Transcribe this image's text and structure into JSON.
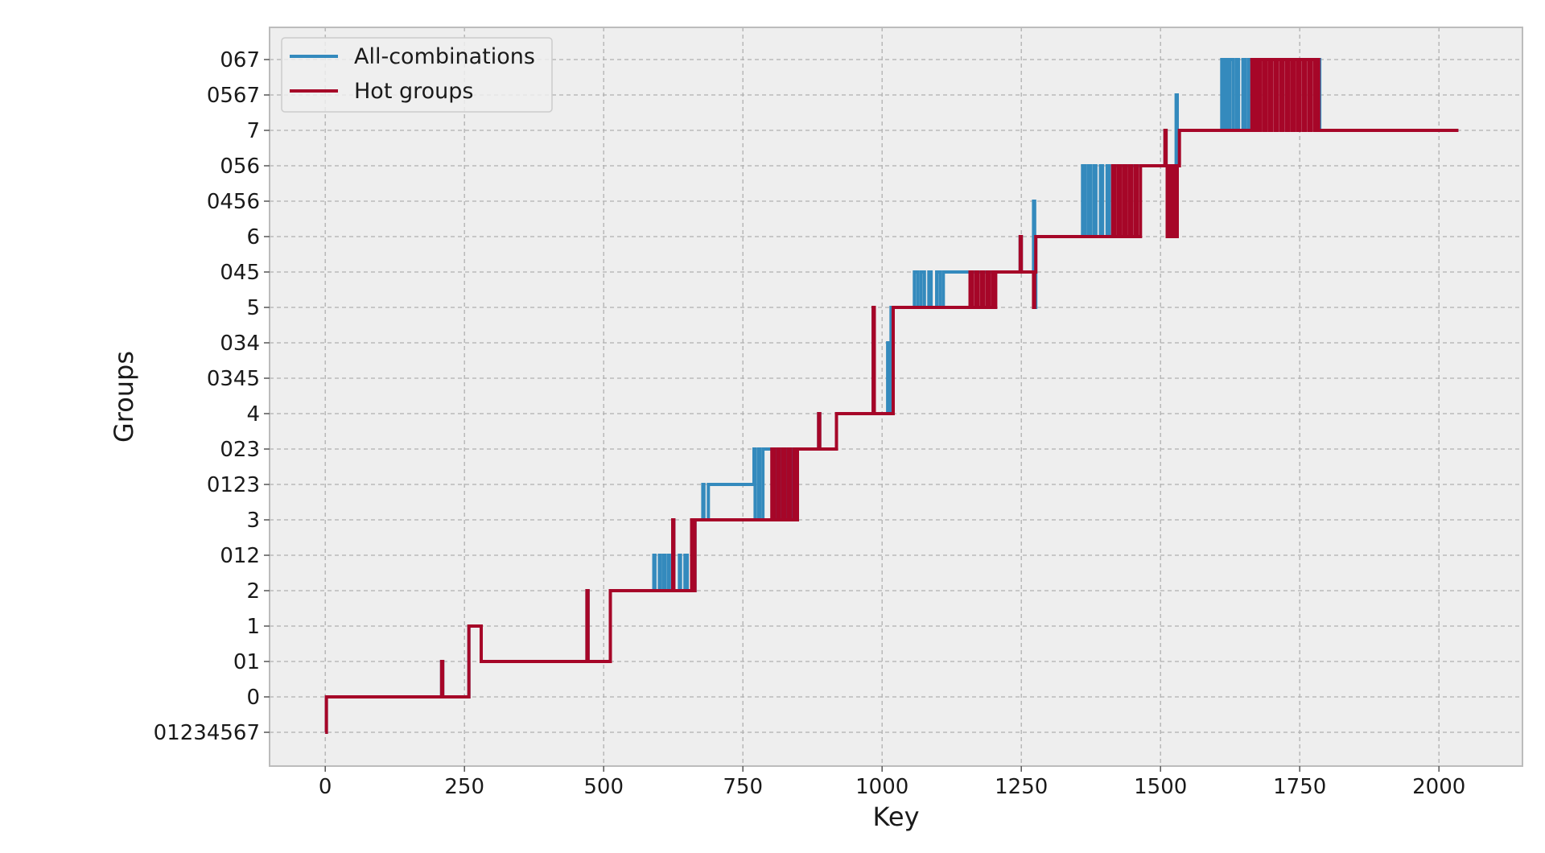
{
  "chart_data": {
    "type": "line",
    "title": "",
    "xlabel": "Key",
    "ylabel": "Groups",
    "xlim": [
      -100,
      2150
    ],
    "x_ticks": [
      0,
      250,
      500,
      750,
      1000,
      1250,
      1500,
      1750,
      2000
    ],
    "y_categories": [
      "01234567",
      "0",
      "01",
      "1",
      "2",
      "012",
      "3",
      "0123",
      "023",
      "4",
      "0345",
      "034",
      "5",
      "045",
      "6",
      "0456",
      "056",
      "7",
      "0567",
      "067"
    ],
    "grid": true,
    "legend_position": "top-left",
    "series": [
      {
        "name": "All-combinations",
        "color": "#348ABD",
        "points": [
          [
            0,
            "01234567"
          ],
          [
            2,
            "0"
          ],
          [
            207,
            "0"
          ],
          [
            209,
            "01"
          ],
          [
            211,
            "0"
          ],
          [
            256,
            "0"
          ],
          [
            258,
            "1"
          ],
          [
            278,
            "1"
          ],
          [
            280,
            "01"
          ],
          [
            468,
            "01"
          ],
          [
            470,
            "2"
          ],
          [
            472,
            "01"
          ],
          [
            510,
            "01"
          ],
          [
            512,
            "2"
          ],
          [
            588,
            "2"
          ],
          [
            590,
            "012"
          ],
          [
            592,
            "2"
          ],
          [
            598,
            "2"
          ],
          [
            600,
            "012"
          ],
          [
            602,
            "2"
          ],
          [
            606,
            "2"
          ],
          [
            608,
            "012"
          ],
          [
            610,
            "2"
          ],
          [
            614,
            "2"
          ],
          [
            616,
            "012"
          ],
          [
            618,
            "2"
          ],
          [
            622,
            "2"
          ],
          [
            624,
            "3"
          ],
          [
            626,
            "2"
          ],
          [
            634,
            "2"
          ],
          [
            636,
            "012"
          ],
          [
            638,
            "2"
          ],
          [
            644,
            "2"
          ],
          [
            646,
            "012"
          ],
          [
            650,
            "2"
          ],
          [
            656,
            "2"
          ],
          [
            658,
            "012"
          ],
          [
            662,
            "2"
          ],
          [
            664,
            "3"
          ],
          [
            676,
            "3"
          ],
          [
            678,
            "0123"
          ],
          [
            680,
            "3"
          ],
          [
            686,
            "3"
          ],
          [
            688,
            "0123"
          ],
          [
            768,
            "0123"
          ],
          [
            770,
            "023"
          ],
          [
            772,
            "3"
          ],
          [
            776,
            "3"
          ],
          [
            778,
            "023"
          ],
          [
            780,
            "3"
          ],
          [
            784,
            "3"
          ],
          [
            786,
            "023"
          ],
          [
            806,
            "023"
          ],
          [
            808,
            "3"
          ],
          [
            812,
            "3"
          ],
          [
            814,
            "023"
          ],
          [
            818,
            "3"
          ],
          [
            822,
            "3"
          ],
          [
            824,
            "023"
          ],
          [
            828,
            "3"
          ],
          [
            832,
            "3"
          ],
          [
            834,
            "023"
          ],
          [
            838,
            "3"
          ],
          [
            842,
            "3"
          ],
          [
            844,
            "023"
          ],
          [
            884,
            "023"
          ],
          [
            886,
            "4"
          ],
          [
            888,
            "023"
          ],
          [
            916,
            "023"
          ],
          [
            918,
            "4"
          ],
          [
            982,
            "4"
          ],
          [
            984,
            "5"
          ],
          [
            986,
            "4"
          ],
          [
            1008,
            "4"
          ],
          [
            1010,
            "034"
          ],
          [
            1014,
            "4"
          ],
          [
            1016,
            "5"
          ],
          [
            1056,
            "5"
          ],
          [
            1058,
            "045"
          ],
          [
            1064,
            "5"
          ],
          [
            1068,
            "5"
          ],
          [
            1070,
            "045"
          ],
          [
            1076,
            "5"
          ],
          [
            1082,
            "5"
          ],
          [
            1084,
            "045"
          ],
          [
            1088,
            "5"
          ],
          [
            1096,
            "5"
          ],
          [
            1098,
            "045"
          ],
          [
            1104,
            "5"
          ],
          [
            1108,
            "5"
          ],
          [
            1110,
            "045"
          ],
          [
            1246,
            "045"
          ],
          [
            1248,
            "6"
          ],
          [
            1250,
            "045"
          ],
          [
            1270,
            "045"
          ],
          [
            1272,
            "0456"
          ],
          [
            1274,
            "5"
          ],
          [
            1276,
            "6"
          ],
          [
            1358,
            "6"
          ],
          [
            1360,
            "056"
          ],
          [
            1364,
            "6"
          ],
          [
            1368,
            "6"
          ],
          [
            1370,
            "056"
          ],
          [
            1374,
            "6"
          ],
          [
            1378,
            "6"
          ],
          [
            1380,
            "056"
          ],
          [
            1384,
            "6"
          ],
          [
            1390,
            "6"
          ],
          [
            1392,
            "056"
          ],
          [
            1396,
            "6"
          ],
          [
            1402,
            "6"
          ],
          [
            1404,
            "056"
          ],
          [
            1408,
            "6"
          ],
          [
            1414,
            "6"
          ],
          [
            1416,
            "056"
          ],
          [
            1506,
            "056"
          ],
          [
            1508,
            "7"
          ],
          [
            1510,
            "056"
          ],
          [
            1526,
            "056"
          ],
          [
            1528,
            "0567"
          ],
          [
            1530,
            "056"
          ],
          [
            1532,
            "7"
          ],
          [
            1608,
            "7"
          ],
          [
            1610,
            "067"
          ],
          [
            1614,
            "7"
          ],
          [
            1616,
            "067"
          ],
          [
            1620,
            "7"
          ],
          [
            1624,
            "067"
          ],
          [
            1630,
            "7"
          ],
          [
            1636,
            "067"
          ],
          [
            1640,
            "7"
          ],
          [
            1648,
            "067"
          ],
          [
            1652,
            "7"
          ],
          [
            1658,
            "067"
          ],
          [
            1664,
            "7"
          ],
          [
            1668,
            "067"
          ],
          [
            1784,
            "067"
          ],
          [
            1786,
            "7"
          ],
          [
            2035,
            "7"
          ]
        ]
      },
      {
        "name": "Hot groups",
        "color": "#A60628",
        "points": [
          [
            0,
            "01234567"
          ],
          [
            2,
            "0"
          ],
          [
            207,
            "0"
          ],
          [
            209,
            "01"
          ],
          [
            211,
            "0"
          ],
          [
            256,
            "0"
          ],
          [
            258,
            "1"
          ],
          [
            278,
            "1"
          ],
          [
            280,
            "01"
          ],
          [
            468,
            "01"
          ],
          [
            470,
            "2"
          ],
          [
            472,
            "01"
          ],
          [
            510,
            "01"
          ],
          [
            512,
            "2"
          ],
          [
            622,
            "2"
          ],
          [
            624,
            "3"
          ],
          [
            626,
            "2"
          ],
          [
            656,
            "2"
          ],
          [
            658,
            "3"
          ],
          [
            660,
            "2"
          ],
          [
            664,
            "3"
          ],
          [
            800,
            "3"
          ],
          [
            802,
            "023"
          ],
          [
            806,
            "3"
          ],
          [
            810,
            "3"
          ],
          [
            812,
            "023"
          ],
          [
            816,
            "3"
          ],
          [
            820,
            "3"
          ],
          [
            822,
            "023"
          ],
          [
            826,
            "3"
          ],
          [
            830,
            "3"
          ],
          [
            832,
            "023"
          ],
          [
            836,
            "3"
          ],
          [
            840,
            "3"
          ],
          [
            842,
            "023"
          ],
          [
            846,
            "3"
          ],
          [
            848,
            "023"
          ],
          [
            884,
            "023"
          ],
          [
            886,
            "4"
          ],
          [
            888,
            "023"
          ],
          [
            916,
            "023"
          ],
          [
            918,
            "4"
          ],
          [
            982,
            "4"
          ],
          [
            984,
            "5"
          ],
          [
            986,
            "4"
          ],
          [
            1018,
            "4"
          ],
          [
            1020,
            "5"
          ],
          [
            1156,
            "5"
          ],
          [
            1158,
            "045"
          ],
          [
            1162,
            "5"
          ],
          [
            1166,
            "5"
          ],
          [
            1168,
            "045"
          ],
          [
            1172,
            "5"
          ],
          [
            1176,
            "5"
          ],
          [
            1178,
            "045"
          ],
          [
            1182,
            "5"
          ],
          [
            1186,
            "5"
          ],
          [
            1188,
            "045"
          ],
          [
            1192,
            "5"
          ],
          [
            1196,
            "5"
          ],
          [
            1198,
            "045"
          ],
          [
            1202,
            "5"
          ],
          [
            1204,
            "045"
          ],
          [
            1246,
            "045"
          ],
          [
            1248,
            "6"
          ],
          [
            1250,
            "045"
          ],
          [
            1270,
            "045"
          ],
          [
            1272,
            "5"
          ],
          [
            1274,
            "045"
          ],
          [
            1276,
            "6"
          ],
          [
            1412,
            "6"
          ],
          [
            1414,
            "056"
          ],
          [
            1418,
            "6"
          ],
          [
            1422,
            "6"
          ],
          [
            1424,
            "056"
          ],
          [
            1428,
            "6"
          ],
          [
            1432,
            "6"
          ],
          [
            1434,
            "056"
          ],
          [
            1438,
            "6"
          ],
          [
            1442,
            "6"
          ],
          [
            1444,
            "056"
          ],
          [
            1448,
            "6"
          ],
          [
            1452,
            "6"
          ],
          [
            1454,
            "056"
          ],
          [
            1458,
            "6"
          ],
          [
            1462,
            "6"
          ],
          [
            1464,
            "056"
          ],
          [
            1506,
            "056"
          ],
          [
            1508,
            "7"
          ],
          [
            1510,
            "056"
          ],
          [
            1512,
            "6"
          ],
          [
            1516,
            "056"
          ],
          [
            1520,
            "6"
          ],
          [
            1524,
            "056"
          ],
          [
            1528,
            "6"
          ],
          [
            1530,
            "056"
          ],
          [
            1534,
            "7"
          ],
          [
            1662,
            "7"
          ],
          [
            1664,
            "067"
          ],
          [
            1668,
            "7"
          ],
          [
            1672,
            "067"
          ],
          [
            1676,
            "7"
          ],
          [
            1680,
            "067"
          ],
          [
            1686,
            "7"
          ],
          [
            1690,
            "067"
          ],
          [
            1696,
            "7"
          ],
          [
            1700,
            "067"
          ],
          [
            1706,
            "7"
          ],
          [
            1710,
            "067"
          ],
          [
            1716,
            "7"
          ],
          [
            1720,
            "067"
          ],
          [
            1726,
            "7"
          ],
          [
            1730,
            "067"
          ],
          [
            1736,
            "7"
          ],
          [
            1740,
            "067"
          ],
          [
            1746,
            "7"
          ],
          [
            1750,
            "067"
          ],
          [
            1756,
            "7"
          ],
          [
            1760,
            "067"
          ],
          [
            1766,
            "7"
          ],
          [
            1770,
            "067"
          ],
          [
            1776,
            "7"
          ],
          [
            1780,
            "067"
          ],
          [
            1784,
            "7"
          ],
          [
            2035,
            "7"
          ]
        ]
      }
    ]
  }
}
